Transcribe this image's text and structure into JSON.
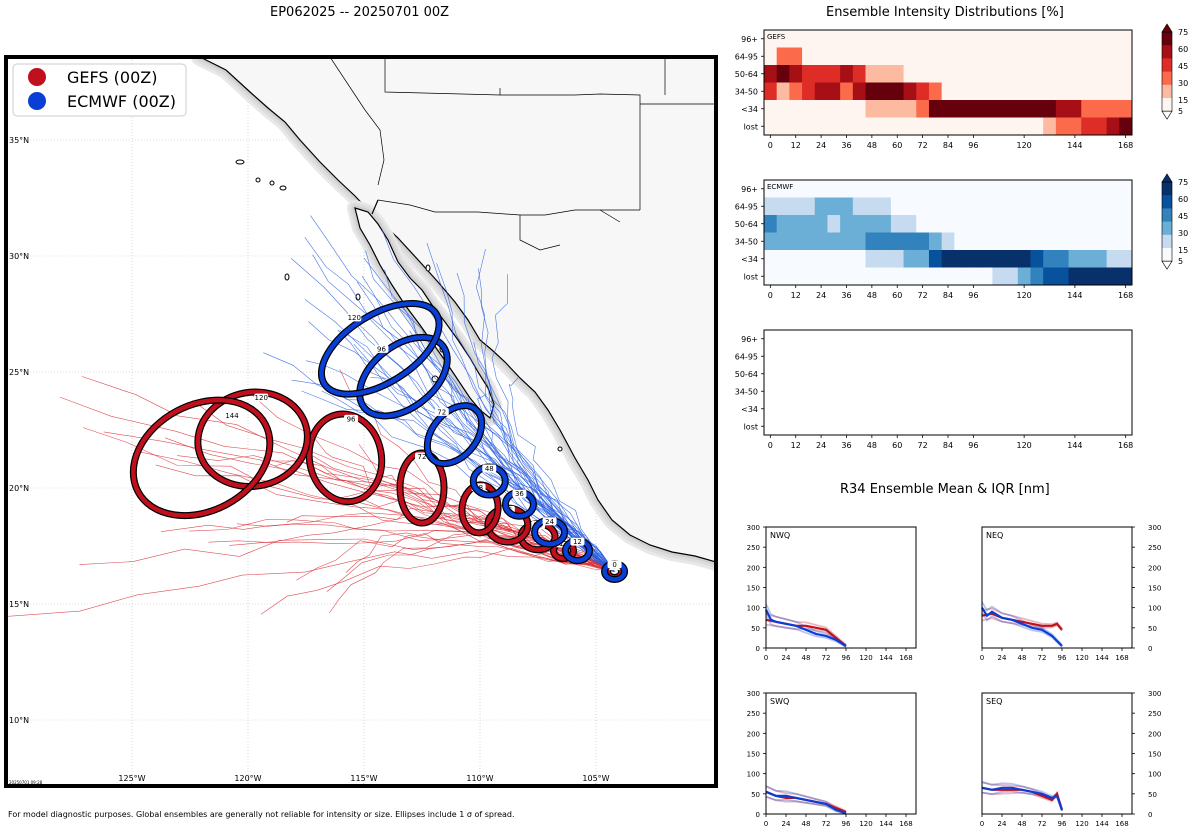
{
  "colors": {
    "gefs": "#c0101e",
    "ecmwf": "#0a3fd6",
    "gefs_track": "#d9303a",
    "ecmwf_track": "#2a5ee0",
    "land": "#f7f7f7"
  },
  "map": {
    "title": "EP062025 -- 20250701 00Z",
    "legend": [
      {
        "label": "GEFS (00Z)",
        "color": "#c0101e"
      },
      {
        "label": "ECMWF (00Z)",
        "color": "#0a3fd6"
      }
    ],
    "lon_ticks": [
      "125°W",
      "120°W",
      "115°W",
      "110°W",
      "105°W"
    ],
    "lat_ticks": [
      "35°N",
      "30°N",
      "25°N",
      "20°N",
      "15°N",
      "10°N"
    ],
    "stamp": "20250701 09:28",
    "gefs_ellipses": [
      {
        "label": "0",
        "lon": -104.2,
        "lat": 16.4
      },
      {
        "label": "12",
        "lon": -106.4,
        "lat": 17.3
      },
      {
        "label": "24",
        "lon": -107.5,
        "lat": 17.9
      },
      {
        "label": "36",
        "lon": -108.8,
        "lat": 18.4
      },
      {
        "label": "48",
        "lon": -110.0,
        "lat": 19.1
      },
      {
        "label": "72",
        "lon": -112.5,
        "lat": 20.0
      },
      {
        "label": "96",
        "lon": -115.8,
        "lat": 21.3
      },
      {
        "label": "120",
        "lon": -119.8,
        "lat": 22.1
      },
      {
        "label": "144",
        "lon": -122.0,
        "lat": 21.3
      }
    ],
    "ecmwf_ellipses": [
      {
        "label": "0",
        "lon": -104.2,
        "lat": 16.4
      },
      {
        "label": "12",
        "lon": -105.8,
        "lat": 17.3
      },
      {
        "label": "24",
        "lon": -107.0,
        "lat": 18.1
      },
      {
        "label": "36",
        "lon": -108.3,
        "lat": 19.3
      },
      {
        "label": "48",
        "lon": -109.6,
        "lat": 20.3
      },
      {
        "label": "72",
        "lon": -111.1,
        "lat": 22.3
      },
      {
        "label": "96",
        "lon": -113.3,
        "lat": 24.8
      },
      {
        "label": "120",
        "lon": -114.3,
        "lat": 26.0
      }
    ]
  },
  "intensity": {
    "title": "Ensemble Intensity Distributions [%]",
    "categories": [
      "96+",
      "64-95",
      "50-64",
      "34-50",
      "<34",
      "lost"
    ],
    "x_ticks": [
      0,
      12,
      24,
      36,
      48,
      60,
      72,
      84,
      96,
      120,
      144,
      168
    ],
    "panels": [
      {
        "name": "GEFS",
        "colormap": "reds",
        "colorbar_ticks": [
          5,
          15,
          30,
          45,
          60,
          75
        ],
        "rows": [
          {
            "category": "96+",
            "values": [
              0,
              0,
              0,
              0,
              0,
              0,
              0,
              0,
              0,
              0,
              0,
              0,
              0,
              0,
              0,
              0,
              0,
              0,
              0,
              0,
              0,
              0,
              0,
              0,
              0,
              0,
              0,
              0,
              0
            ]
          },
          {
            "category": "64-95",
            "values": [
              0,
              30,
              30,
              0,
              0,
              0,
              0,
              0,
              0,
              0,
              0,
              0,
              0,
              0,
              0,
              0,
              0,
              0,
              0,
              0,
              0,
              0,
              0,
              0,
              0,
              0,
              0,
              0,
              0
            ]
          },
          {
            "category": "50-64",
            "values": [
              60,
              75,
              60,
              40,
              40,
              40,
              60,
              40,
              15,
              15,
              15,
              0,
              0,
              0,
              0,
              0,
              0,
              0,
              0,
              0,
              0,
              0,
              0,
              0,
              0,
              0,
              0,
              0,
              0
            ]
          },
          {
            "category": "34-50",
            "values": [
              40,
              10,
              20,
              40,
              50,
              60,
              30,
              50,
              75,
              75,
              75,
              60,
              40,
              20,
              0,
              0,
              0,
              0,
              0,
              0,
              0,
              0,
              0,
              0,
              0,
              0,
              0,
              0,
              0
            ]
          },
          {
            "category": "<34",
            "values": [
              5,
              5,
              5,
              5,
              5,
              5,
              5,
              5,
              15,
              15,
              15,
              15,
              30,
              75,
              75,
              75,
              75,
              75,
              75,
              75,
              75,
              75,
              75,
              60,
              60,
              30,
              30,
              30,
              30
            ]
          },
          {
            "category": "lost",
            "values": [
              0,
              0,
              0,
              0,
              0,
              0,
              0,
              0,
              0,
              0,
              0,
              0,
              0,
              0,
              0,
              0,
              0,
              0,
              0,
              0,
              0,
              0,
              15,
              30,
              30,
              40,
              40,
              60,
              75
            ]
          }
        ]
      },
      {
        "name": "ECMWF",
        "colormap": "blues",
        "colorbar_ticks": [
          5,
          15,
          30,
          45,
          60,
          75
        ],
        "rows": [
          {
            "category": "96+",
            "values": [
              0,
              0,
              0,
              0,
              0,
              0,
              0,
              0,
              0,
              0,
              0,
              0,
              0,
              0,
              0,
              0,
              0,
              0,
              0,
              0,
              0,
              0,
              0,
              0,
              0,
              0,
              0,
              0,
              0
            ]
          },
          {
            "category": "64-95",
            "values": [
              15,
              15,
              15,
              15,
              30,
              30,
              30,
              15,
              15,
              15,
              0,
              0,
              0,
              0,
              0,
              0,
              0,
              0,
              0,
              0,
              0,
              0,
              0,
              0,
              0,
              0,
              0,
              0,
              0
            ]
          },
          {
            "category": "50-64",
            "values": [
              45,
              30,
              30,
              30,
              30,
              15,
              30,
              30,
              30,
              30,
              15,
              15,
              0,
              0,
              0,
              0,
              0,
              0,
              0,
              0,
              0,
              0,
              0,
              0,
              0,
              0,
              0,
              0,
              0
            ]
          },
          {
            "category": "34-50",
            "values": [
              30,
              30,
              30,
              30,
              30,
              30,
              30,
              30,
              45,
              45,
              45,
              45,
              45,
              30,
              15,
              0,
              0,
              0,
              0,
              0,
              0,
              0,
              0,
              0,
              0,
              0,
              0,
              0,
              0
            ]
          },
          {
            "category": "<34",
            "values": [
              5,
              5,
              5,
              5,
              5,
              5,
              5,
              5,
              15,
              15,
              15,
              30,
              30,
              60,
              75,
              75,
              75,
              75,
              75,
              75,
              75,
              60,
              45,
              45,
              30,
              30,
              30,
              15,
              15
            ]
          },
          {
            "category": "lost",
            "values": [
              0,
              0,
              0,
              0,
              0,
              0,
              0,
              0,
              0,
              0,
              0,
              0,
              0,
              0,
              0,
              0,
              0,
              0,
              15,
              15,
              30,
              45,
              60,
              60,
              75,
              75,
              75,
              75,
              75
            ]
          }
        ]
      },
      {
        "name": "",
        "colormap": "none",
        "rows": []
      }
    ]
  },
  "r34": {
    "title": "R34 Ensemble Mean & IQR [nm]",
    "x_ticks": [
      0,
      24,
      48,
      72,
      96,
      120,
      144,
      168
    ],
    "y_ticks": [
      0,
      50,
      100,
      150,
      200,
      250,
      300
    ],
    "quadrants": [
      {
        "name": "NWQ",
        "gefs_mean": [
          [
            0,
            70
          ],
          [
            12,
            65
          ],
          [
            24,
            60
          ],
          [
            36,
            55
          ],
          [
            48,
            55
          ],
          [
            60,
            50
          ],
          [
            72,
            45
          ],
          [
            84,
            25
          ],
          [
            96,
            5
          ]
        ],
        "ecmwf_mean": [
          [
            0,
            95
          ],
          [
            6,
            70
          ],
          [
            12,
            65
          ],
          [
            24,
            60
          ],
          [
            36,
            55
          ],
          [
            48,
            45
          ],
          [
            60,
            35
          ],
          [
            72,
            30
          ],
          [
            84,
            20
          ],
          [
            96,
            5
          ]
        ]
      },
      {
        "name": "NEQ",
        "gefs_mean": [
          [
            0,
            80
          ],
          [
            12,
            85
          ],
          [
            24,
            75
          ],
          [
            36,
            70
          ],
          [
            48,
            65
          ],
          [
            60,
            60
          ],
          [
            72,
            55
          ],
          [
            84,
            55
          ],
          [
            90,
            60
          ],
          [
            96,
            45
          ]
        ],
        "ecmwf_mean": [
          [
            0,
            100
          ],
          [
            6,
            80
          ],
          [
            12,
            90
          ],
          [
            24,
            75
          ],
          [
            36,
            70
          ],
          [
            48,
            60
          ],
          [
            60,
            50
          ],
          [
            72,
            45
          ],
          [
            84,
            30
          ],
          [
            96,
            5
          ]
        ]
      },
      {
        "name": "SWQ",
        "gefs_mean": [
          [
            0,
            55
          ],
          [
            12,
            45
          ],
          [
            24,
            40
          ],
          [
            36,
            40
          ],
          [
            48,
            35
          ],
          [
            60,
            30
          ],
          [
            72,
            25
          ],
          [
            84,
            15
          ],
          [
            96,
            5
          ]
        ],
        "ecmwf_mean": [
          [
            0,
            55
          ],
          [
            12,
            45
          ],
          [
            24,
            45
          ],
          [
            36,
            40
          ],
          [
            48,
            35
          ],
          [
            60,
            30
          ],
          [
            72,
            25
          ],
          [
            84,
            10
          ],
          [
            96,
            2
          ]
        ]
      },
      {
        "name": "SEQ",
        "gefs_mean": [
          [
            0,
            65
          ],
          [
            12,
            60
          ],
          [
            24,
            60
          ],
          [
            36,
            60
          ],
          [
            48,
            60
          ],
          [
            60,
            55
          ],
          [
            72,
            45
          ],
          [
            84,
            35
          ],
          [
            90,
            50
          ],
          [
            96,
            10
          ]
        ],
        "ecmwf_mean": [
          [
            0,
            65
          ],
          [
            12,
            60
          ],
          [
            24,
            65
          ],
          [
            36,
            65
          ],
          [
            48,
            60
          ],
          [
            60,
            55
          ],
          [
            72,
            50
          ],
          [
            84,
            40
          ],
          [
            90,
            45
          ],
          [
            96,
            10
          ]
        ]
      }
    ]
  },
  "footnote": "For model diagnostic purposes. Global ensembles are generally not reliable for intensity or size. Ellipses include 1 σ of spread."
}
